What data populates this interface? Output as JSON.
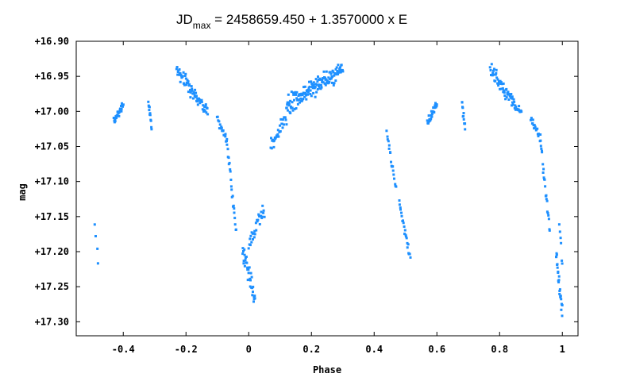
{
  "chart_data": {
    "type": "scatter",
    "title_main": "JD",
    "title_sub": "max",
    "title_rest": " = 2458659.450 + 1.3570000 x E",
    "xlabel": "Phase",
    "ylabel": "mag",
    "xlim": [
      -0.55,
      1.05
    ],
    "ylim": [
      17.32,
      16.9
    ],
    "x_ticks": [
      -0.4,
      -0.2,
      0,
      0.2,
      0.4,
      0.6,
      0.8,
      1
    ],
    "x_tick_labels": [
      "-0.4",
      "-0.2",
      "0",
      "0.2",
      "0.4",
      "0.6",
      "0.8",
      "1"
    ],
    "y_ticks": [
      16.9,
      16.95,
      17.0,
      17.05,
      17.1,
      17.15,
      17.2,
      17.25,
      17.3
    ],
    "y_tick_labels": [
      "+16.90",
      "+16.95",
      "+17.00",
      "+17.05",
      "+17.10",
      "+17.15",
      "+17.20",
      "+17.25",
      "+17.30"
    ],
    "grid": false,
    "marker_color": "#1e90ff",
    "segments": [
      {
        "x0": -0.49,
        "x1": -0.48,
        "y0": 17.16,
        "y1": 17.215,
        "n": 4,
        "s": 0.006
      },
      {
        "x0": -0.43,
        "x1": -0.4,
        "y0": 17.015,
        "y1": 16.99,
        "n": 30,
        "s": 0.008
      },
      {
        "x0": -0.32,
        "x1": -0.31,
        "y0": 16.985,
        "y1": 17.025,
        "n": 12,
        "s": 0.008
      },
      {
        "x0": -0.23,
        "x1": -0.16,
        "y0": 16.94,
        "y1": 16.985,
        "n": 50,
        "s": 0.014
      },
      {
        "x0": -0.16,
        "x1": -0.13,
        "y0": 16.985,
        "y1": 17.0,
        "n": 20,
        "s": 0.012
      },
      {
        "x0": -0.1,
        "x1": -0.07,
        "y0": 17.01,
        "y1": 17.04,
        "n": 18,
        "s": 0.008
      },
      {
        "x0": -0.07,
        "x1": -0.04,
        "y0": 17.04,
        "y1": 17.17,
        "n": 22,
        "s": 0.012
      },
      {
        "x0": -0.02,
        "x1": 0.02,
        "y0": 17.2,
        "y1": 17.27,
        "n": 35,
        "s": 0.025
      },
      {
        "x0": 0.0,
        "x1": 0.05,
        "y0": 17.19,
        "y1": 17.14,
        "n": 30,
        "s": 0.02
      },
      {
        "x0": 0.07,
        "x1": 0.12,
        "y0": 17.05,
        "y1": 17.01,
        "n": 30,
        "s": 0.015
      },
      {
        "x0": 0.12,
        "x1": 0.3,
        "y0": 16.99,
        "y1": 16.94,
        "n": 150,
        "s": 0.018
      },
      {
        "x0": 0.44,
        "x1": 0.47,
        "y0": 17.03,
        "y1": 17.11,
        "n": 18,
        "s": 0.008
      },
      {
        "x0": 0.48,
        "x1": 0.515,
        "y0": 17.13,
        "y1": 17.21,
        "n": 22,
        "s": 0.01
      },
      {
        "x0": 0.57,
        "x1": 0.6,
        "y0": 17.015,
        "y1": 16.99,
        "n": 30,
        "s": 0.008
      },
      {
        "x0": 0.68,
        "x1": 0.69,
        "y0": 16.985,
        "y1": 17.025,
        "n": 12,
        "s": 0.008
      },
      {
        "x0": 0.77,
        "x1": 0.84,
        "y0": 16.94,
        "y1": 16.985,
        "n": 50,
        "s": 0.014
      },
      {
        "x0": 0.84,
        "x1": 0.87,
        "y0": 16.985,
        "y1": 17.0,
        "n": 20,
        "s": 0.012
      },
      {
        "x0": 0.9,
        "x1": 0.93,
        "y0": 17.01,
        "y1": 17.04,
        "n": 18,
        "s": 0.008
      },
      {
        "x0": 0.93,
        "x1": 0.96,
        "y0": 17.04,
        "y1": 17.17,
        "n": 22,
        "s": 0.012
      },
      {
        "x0": 0.98,
        "x1": 1.0,
        "y0": 17.2,
        "y1": 17.29,
        "n": 25,
        "s": 0.02
      },
      {
        "x0": 0.99,
        "x1": 1.0,
        "y0": 17.16,
        "y1": 17.22,
        "n": 6,
        "s": 0.01
      }
    ]
  }
}
